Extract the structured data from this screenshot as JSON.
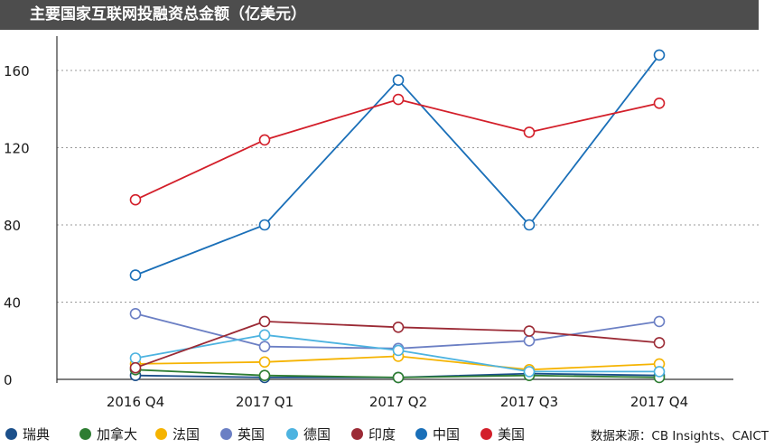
{
  "chart_data": {
    "type": "line",
    "title": "主要国家互联网投融资总金额（亿美元）",
    "xlabel": "",
    "ylabel": "",
    "categories": [
      "2016 Q4",
      "2017 Q1",
      "2017 Q2",
      "2017 Q3",
      "2017 Q4"
    ],
    "ylim": [
      0,
      170
    ],
    "yticks": [
      0,
      40,
      80,
      120,
      160
    ],
    "grid": "horizontal dotted",
    "legend_position": "bottom",
    "series": [
      {
        "name": "瑞典",
        "color": "#1b4f8a",
        "values": [
          2,
          1,
          1,
          3,
          2
        ]
      },
      {
        "name": "加拿大",
        "color": "#2e7d32",
        "values": [
          5,
          2,
          1,
          2,
          1
        ]
      },
      {
        "name": "法国",
        "color": "#f5b300",
        "values": [
          8,
          9,
          12,
          5,
          8
        ]
      },
      {
        "name": "英国",
        "color": "#6b7fc4",
        "values": [
          34,
          17,
          16,
          20,
          30
        ]
      },
      {
        "name": "德国",
        "color": "#4db3e0",
        "values": [
          11,
          23,
          15,
          4,
          4
        ]
      },
      {
        "name": "印度",
        "color": "#9b2a35",
        "values": [
          6,
          30,
          27,
          25,
          19
        ]
      },
      {
        "name": "中国",
        "color": "#1a6fb8",
        "values": [
          54,
          80,
          155,
          80,
          168
        ]
      },
      {
        "name": "美国",
        "color": "#d31f2a",
        "values": [
          93,
          124,
          145,
          128,
          143
        ]
      }
    ],
    "source": "数据来源：CB Insights、CAICT"
  }
}
